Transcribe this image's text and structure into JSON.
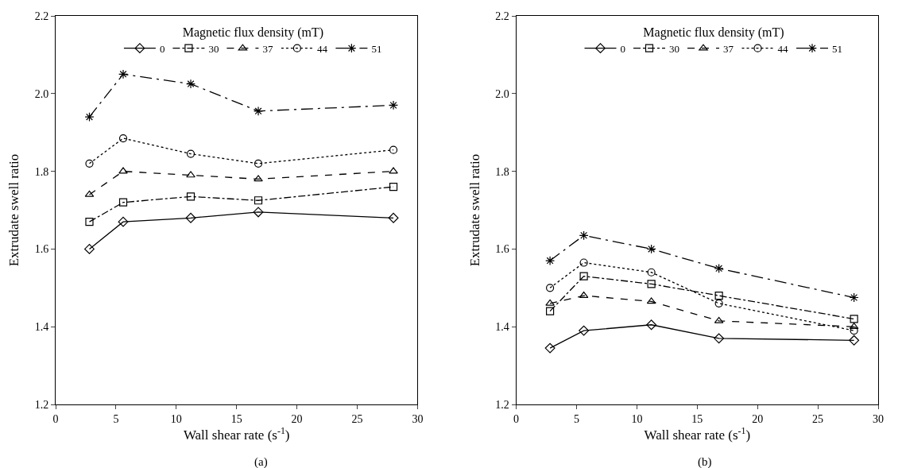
{
  "chart_data": [
    {
      "type": "line",
      "xlabel": "Wall shear rate (s$^{-1}$)",
      "ylabel": "Extrudate swell ratio",
      "legend_title": "Magnetic flux density (mT)",
      "annotations": [
        "(a)"
      ],
      "xlim": [
        0,
        30
      ],
      "xticks": [
        0,
        5,
        10,
        15,
        20,
        25,
        30
      ],
      "ylim": [
        1.2,
        2.2
      ],
      "yticks": [
        1.2,
        1.4,
        1.6,
        1.8,
        {
          "value": 2,
          "label": "2.0"
        },
        2.2
      ],
      "legend": "top",
      "grid": false,
      "x": [
        2.8,
        5.6,
        11.2,
        16.8,
        28
      ],
      "series": [
        {
          "name": "0",
          "color": "#000000",
          "marker": "diamond",
          "line_style": "solid",
          "values": [
            1.6,
            1.67,
            1.68,
            1.695,
            1.68
          ]
        },
        {
          "name": "30",
          "color": "#000000",
          "marker": "square",
          "line_style": "dashdot",
          "values": [
            1.67,
            1.72,
            1.735,
            1.725,
            1.76
          ]
        },
        {
          "name": "37",
          "color": "#000000",
          "marker": "triangle",
          "line_style": "dashed",
          "values": [
            1.74,
            1.8,
            1.79,
            1.78,
            1.8
          ]
        },
        {
          "name": "44",
          "color": "#000000",
          "marker": "circle",
          "line_style": "dotted",
          "values": [
            1.82,
            1.885,
            1.845,
            1.82,
            1.855
          ]
        },
        {
          "name": "51",
          "color": "#000000",
          "marker": "cross",
          "line_style": "dashdotdot",
          "values": [
            1.94,
            2.05,
            2.025,
            1.955,
            1.97
          ]
        }
      ]
    },
    {
      "type": "line",
      "xlabel": "Wall shear rate (s$^{-1}$)",
      "ylabel": "Extrudate swell ratio",
      "legend_title": "Magnetic flux density (mT)",
      "annotations": [
        "(b)"
      ],
      "xlim": [
        0,
        30
      ],
      "xticks": [
        0,
        5,
        10,
        15,
        20,
        25,
        30
      ],
      "ylim": [
        1.2,
        2.2
      ],
      "yticks": [
        1.2,
        1.4,
        1.6,
        1.8,
        {
          "value": 2,
          "label": "2.0"
        },
        2.2
      ],
      "legend": "top",
      "grid": false,
      "x": [
        2.8,
        5.6,
        11.2,
        16.8,
        28
      ],
      "series": [
        {
          "name": "0",
          "color": "#000000",
          "marker": "diamond",
          "line_style": "solid",
          "values": [
            1.345,
            1.39,
            1.405,
            1.37,
            1.365
          ]
        },
        {
          "name": "30",
          "color": "#000000",
          "marker": "square",
          "line_style": "dashdot",
          "values": [
            1.44,
            1.53,
            1.51,
            1.48,
            1.42
          ]
        },
        {
          "name": "37",
          "color": "#000000",
          "marker": "triangle",
          "line_style": "dashed",
          "values": [
            1.46,
            1.48,
            1.465,
            1.415,
            1.4
          ]
        },
        {
          "name": "44",
          "color": "#000000",
          "marker": "circle",
          "line_style": "dotted",
          "values": [
            1.5,
            1.565,
            1.54,
            1.46,
            1.39
          ]
        },
        {
          "name": "51",
          "color": "#000000",
          "marker": "cross",
          "line_style": "dashdotdot",
          "values": [
            1.57,
            1.635,
            1.6,
            1.55,
            1.475
          ]
        }
      ]
    }
  ]
}
